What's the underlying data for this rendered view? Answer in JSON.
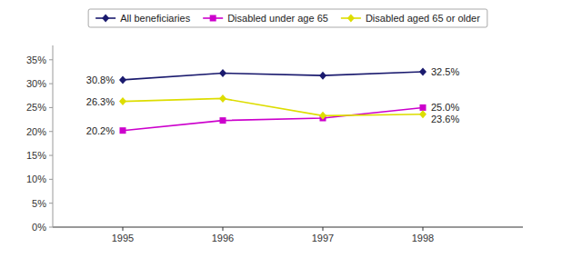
{
  "chart_data": {
    "type": "line",
    "x": [
      1995,
      1996,
      1997,
      1998
    ],
    "xlim": [
      1994.3,
      1999.0
    ],
    "xticks": [
      1995,
      1996,
      1997,
      1998
    ],
    "ylim": [
      0,
      38
    ],
    "yticks": [
      {
        "value": 0,
        "label": "0%"
      },
      {
        "value": 5,
        "label": "5%"
      },
      {
        "value": 10,
        "label": "10%"
      },
      {
        "value": 15,
        "label": "15%"
      },
      {
        "value": 20,
        "label": "20%"
      },
      {
        "value": 25,
        "label": "25%"
      },
      {
        "value": 30,
        "label": "30%"
      },
      {
        "value": 35,
        "label": "35%"
      }
    ],
    "grid": false,
    "legend": "top",
    "data_labels": true,
    "series": [
      {
        "name": "All beneficiaries",
        "color": "#1a1a6e",
        "marker": "diamond",
        "values": [
          30.8,
          32.2,
          31.7,
          32.5
        ],
        "value_labels": [
          "30.8%",
          null,
          null,
          "32.5%"
        ]
      },
      {
        "name": "Disabled under age 65",
        "color": "#cc00cc",
        "marker": "square",
        "values": [
          20.2,
          22.3,
          22.8,
          25.0
        ],
        "value_labels": [
          "20.2%",
          null,
          null,
          "25.0%"
        ]
      },
      {
        "name": "Disabled aged 65 or older",
        "color": "#dddd00",
        "marker": "diamond",
        "values": [
          26.3,
          26.9,
          23.3,
          23.6
        ],
        "value_labels": [
          "26.3%",
          null,
          null,
          "23.6%"
        ]
      }
    ]
  }
}
